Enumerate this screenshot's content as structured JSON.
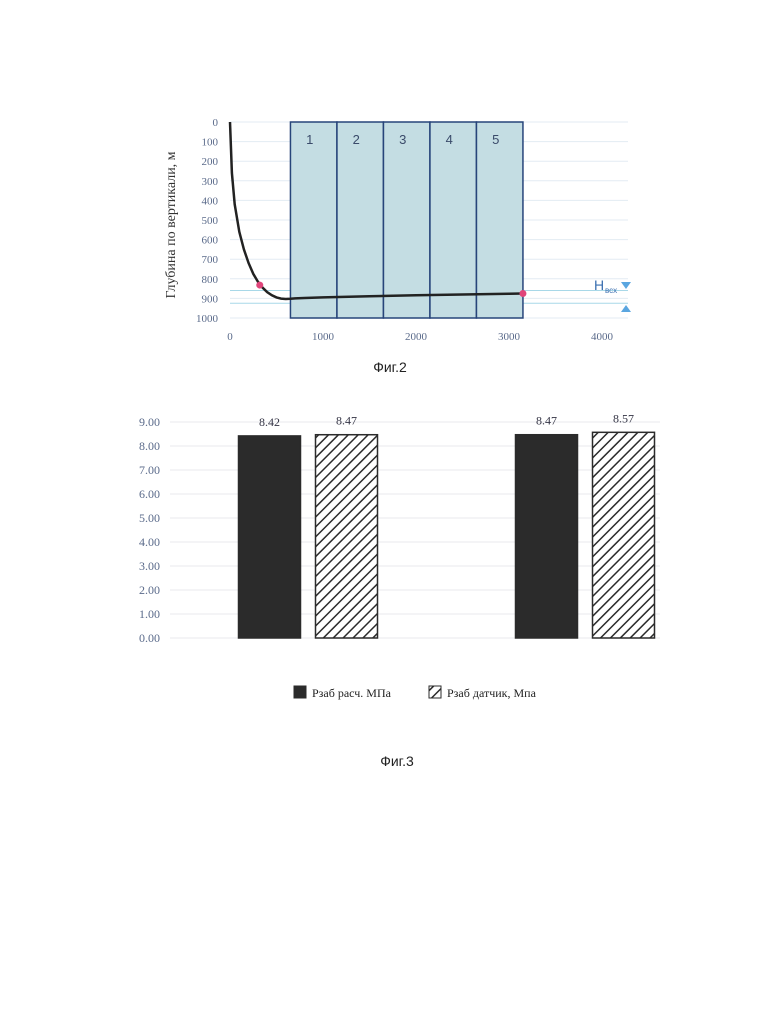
{
  "figure2": {
    "caption": "Фиг.2",
    "y_axis_title": "Глубина по вертикали, м",
    "marker_label": "H",
    "marker_label_sub": "всх",
    "zones": [
      "1",
      "2",
      "3",
      "4",
      "5"
    ]
  },
  "figure3": {
    "caption": "Фиг.3"
  },
  "chart_data": [
    {
      "type": "line",
      "title": "",
      "xlabel": "",
      "ylabel": "Глубина по вертикали, м",
      "xlim": [
        0,
        4000
      ],
      "ylim": [
        0,
        1000
      ],
      "y_inverted": true,
      "x_ticks": [
        "0",
        "1000",
        "2000",
        "3000",
        "4000"
      ],
      "y_ticks": [
        "0",
        "100",
        "200",
        "300",
        "400",
        "500",
        "600",
        "700",
        "800",
        "900",
        "1000"
      ],
      "grid": "horizontal",
      "zones": [
        {
          "label": "1",
          "x_start": 650,
          "x_end": 1150
        },
        {
          "label": "2",
          "x_start": 1150,
          "x_end": 1650
        },
        {
          "label": "3",
          "x_start": 1650,
          "x_end": 2150
        },
        {
          "label": "4",
          "x_start": 2150,
          "x_end": 2650
        },
        {
          "label": "5",
          "x_start": 2650,
          "x_end": 3150
        }
      ],
      "series": [
        {
          "x": [
            0,
            20,
            50,
            100,
            150,
            200,
            250,
            300,
            350,
            400,
            450,
            500,
            550,
            600,
            650,
            700,
            800,
            1000,
            1500,
            2000,
            2500,
            3000,
            3150
          ],
          "y": [
            0,
            260,
            420,
            560,
            650,
            720,
            775,
            815,
            845,
            868,
            884,
            895,
            901,
            903,
            902,
            900,
            898,
            895,
            889,
            884,
            880,
            876,
            875
          ]
        }
      ],
      "points": [
        {
          "x": 320,
          "y": 832
        },
        {
          "x": 3150,
          "y": 875
        }
      ],
      "reference_lines_y": [
        860,
        925
      ]
    },
    {
      "type": "bar",
      "title": "",
      "xlabel": "",
      "ylabel": "",
      "ylim": [
        0,
        9
      ],
      "y_ticks": [
        "0.00",
        "1.00",
        "2.00",
        "3.00",
        "4.00",
        "5.00",
        "6.00",
        "7.00",
        "8.00",
        "9.00"
      ],
      "grid": "horizontal",
      "legend_position": "bottom",
      "categories": [
        "",
        ""
      ],
      "series": [
        {
          "name": "Рзаб расч. МПа",
          "values": [
            8.42,
            8.47
          ],
          "labels": [
            "8.42",
            "8.47"
          ],
          "color": "#2b2b2b",
          "pattern": "solid"
        },
        {
          "name": "Рзаб датчик, Мпа",
          "values": [
            8.47,
            8.57
          ],
          "labels": [
            "8.47",
            "8.57"
          ],
          "color": "#2b2b2b",
          "pattern": "hatch"
        }
      ]
    }
  ]
}
